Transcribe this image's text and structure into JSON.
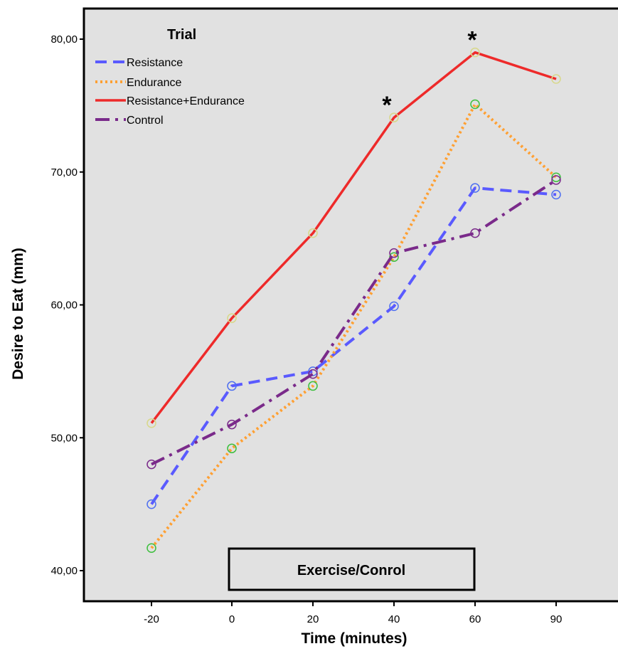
{
  "chart_data": {
    "type": "line",
    "xlabel": "Time (minutes)",
    "ylabel": "Desire to Eat (mm)",
    "x": [
      "-20",
      "0",
      "20",
      "40",
      "60",
      "90"
    ],
    "ylim": [
      38,
      84
    ],
    "yticks": [
      "40,00",
      "50,00",
      "60,00",
      "70,00",
      "80,00"
    ],
    "ytick_values": [
      40,
      50,
      60,
      70,
      80
    ],
    "grid": false,
    "legend_title": "Trial",
    "legend_position": "top-left",
    "series": [
      {
        "name": "Resistance",
        "values": [
          45.0,
          53.9,
          55.0,
          59.9,
          68.8,
          68.3
        ],
        "color": "#5a5aff",
        "dash": "dashed",
        "marker_color": "#4e6ff0"
      },
      {
        "name": "Endurance",
        "values": [
          41.7,
          49.2,
          53.9,
          63.6,
          75.1,
          69.6
        ],
        "color": "#ffa033",
        "dash": "dotted",
        "marker_color": "#3dbf3d"
      },
      {
        "name": "Resistance+Endurance",
        "values": [
          51.1,
          59.0,
          65.4,
          74.1,
          79.0,
          77.0
        ],
        "color": "#ee2a2a",
        "dash": "solid",
        "marker_color": "#d8d88a"
      },
      {
        "name": "Control",
        "values": [
          48.0,
          51.0,
          54.8,
          63.9,
          65.4,
          69.4
        ],
        "color": "#7a2a8a",
        "dash": "dashdot",
        "marker_color": "#7a2a8a"
      }
    ],
    "annotations": [
      {
        "text": "*",
        "x": "40"
      },
      {
        "text": "*",
        "x": "60"
      }
    ],
    "box_label": "Exercise/Conrol",
    "plot_background": "#e1e1e1"
  }
}
